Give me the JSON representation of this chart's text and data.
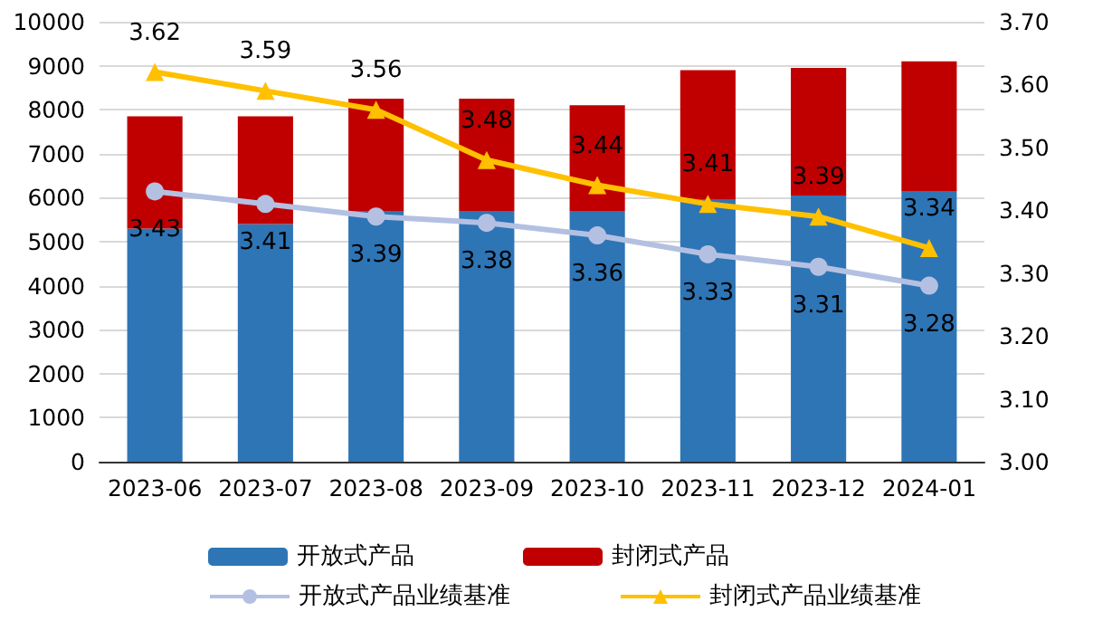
{
  "chart_data": {
    "type": "bar",
    "stacked": true,
    "categories": [
      "2023-06",
      "2023-07",
      "2023-08",
      "2023-09",
      "2023-10",
      "2023-11",
      "2023-12",
      "2024-01"
    ],
    "series": [
      {
        "name": "开放式产品",
        "color": "#2e75b6",
        "values": [
          5300,
          5400,
          5700,
          5700,
          5700,
          5950,
          6050,
          6150
        ]
      },
      {
        "name": "封闭式产品",
        "color": "#c00000",
        "values": [
          2550,
          2450,
          2550,
          2550,
          2400,
          2950,
          2900,
          2950
        ]
      },
      {
        "name": "开放式产品业绩基准",
        "type": "line",
        "axis": "y2",
        "marker": "circle",
        "color": "#b4c0e2",
        "values": [
          3.43,
          3.41,
          3.39,
          3.38,
          3.36,
          3.33,
          3.31,
          3.28
        ],
        "data_labels": true
      },
      {
        "name": "封闭式产品业绩基准",
        "type": "line",
        "axis": "y2",
        "marker": "triangle",
        "color": "#ffc000",
        "values": [
          3.62,
          3.59,
          3.56,
          3.48,
          3.44,
          3.41,
          3.39,
          3.34
        ],
        "data_labels": true
      }
    ],
    "ylim": [
      0,
      10000
    ],
    "yticks": [
      0,
      1000,
      2000,
      3000,
      4000,
      5000,
      6000,
      7000,
      8000,
      9000,
      10000
    ],
    "y2lim": [
      3.0,
      3.7
    ],
    "y2ticks": [
      {
        "value": 3.0,
        "label": "3.00"
      },
      {
        "value": 3.1,
        "label": "3.10"
      },
      {
        "value": 3.2,
        "label": "3.20"
      },
      {
        "value": 3.3,
        "label": "3.30"
      },
      {
        "value": 3.4,
        "label": "3.40"
      },
      {
        "value": 3.5,
        "label": "3.50"
      },
      {
        "value": 3.6,
        "label": "3.60"
      },
      {
        "value": 3.7,
        "label": "3.70"
      }
    ],
    "grid": "y",
    "legend": "bottom"
  }
}
